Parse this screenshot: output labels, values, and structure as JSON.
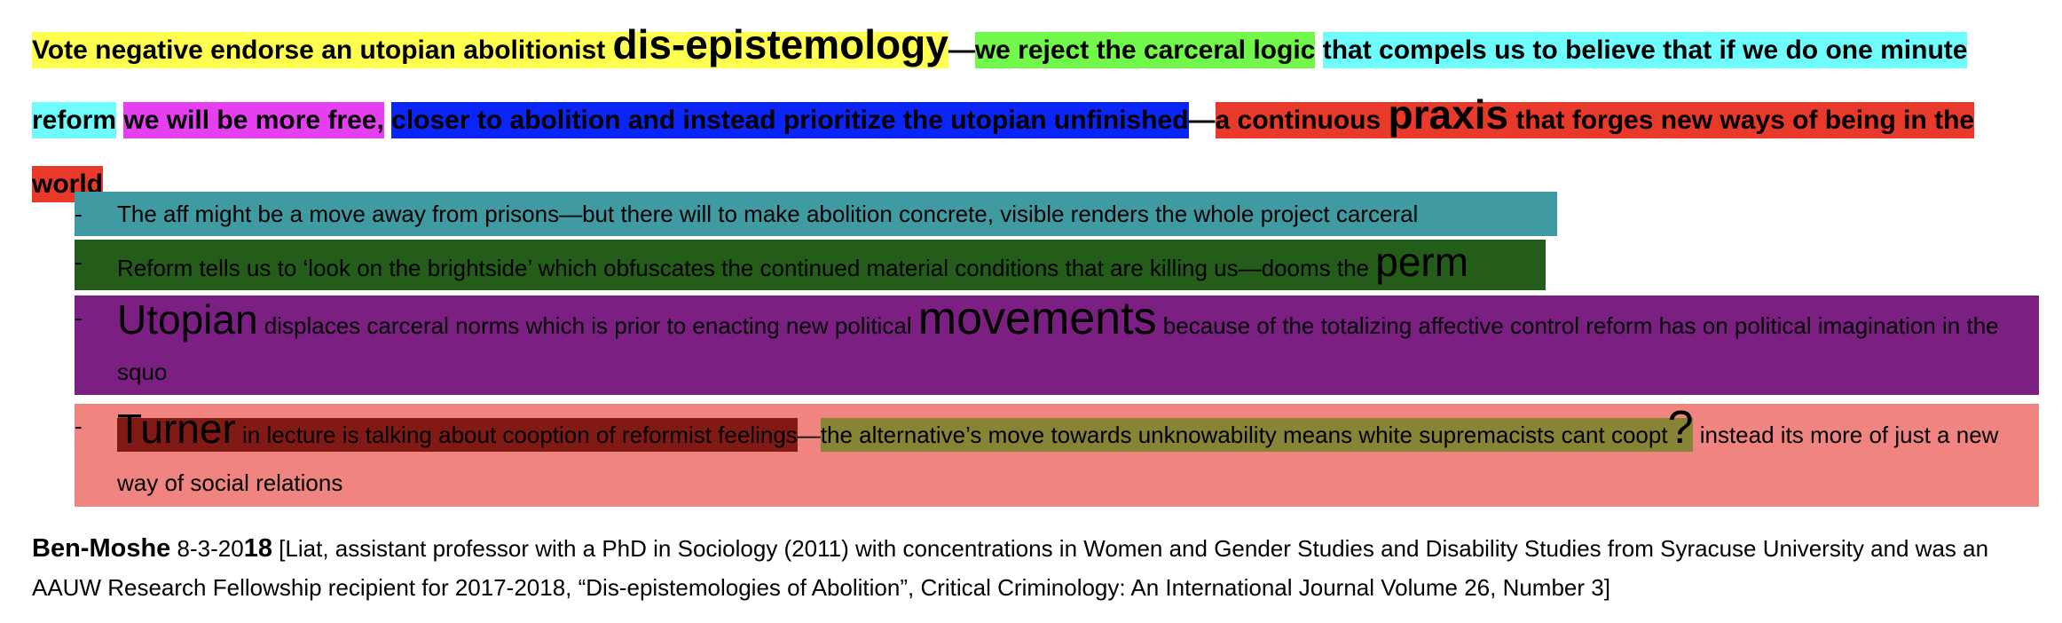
{
  "tag": {
    "seg1": "Vote negative endorse an utopian abolitionist ",
    "seg1_big": "dis-epistemology",
    "dash1": "—",
    "seg2": "we reject the carceral logic",
    "seg3": "that compels us to believe that if we do one minute reform",
    "seg4": "we will be more free,",
    "seg5": "closer to abolition and instead prioritize the utopian unfinished",
    "dash2": "—",
    "seg6a": "a continuous ",
    "seg6_big": "praxis",
    "seg6b": " that forges new ways of being in the world"
  },
  "bullets": {
    "b1": {
      "dash": "-",
      "text": "The aff might be a move away from prisons—but there will to make abolition concrete, visible renders the whole project carceral"
    },
    "b2": {
      "dash": "-",
      "text": "Reform tells us to ‘look on the brightside’ which obfuscates the continued material conditions that are killing us—dooms the ",
      "big": "perm"
    },
    "b3": {
      "dash": "-",
      "big1": "Utopian",
      "text1": " displaces carceral norms which is prior to enacting new political ",
      "big2": "movements",
      "text2": " because of the totalizing affective control reform has on political imagination in the squo"
    },
    "b4": {
      "dash": "-",
      "big1": "Turner",
      "text1": " in lecture is talking about cooption of reformist feelings",
      "dash_sep": "—",
      "text2": "the alternative’s move towards unknowability means white supremacists cant coopt",
      "big2": "?",
      "text3": " instead its more of just a new way of social relations"
    }
  },
  "citation": {
    "author": "Ben-Moshe",
    "date": " 8-3-20",
    "year_bold": "18",
    "body": " [Liat, assistant professor with a PhD in Sociology (2011) with concentrations in Women and Gender Studies and Disability Studies from Syracuse University and was an AAUW Research Fellowship recipient for 2017-2018, “Dis-epistemologies of Abolition”, Critical Criminology: An International Journal Volume 26, Number 3]"
  },
  "colors": {
    "yellow": "#ffff4f",
    "green": "#72f84a",
    "cyan": "#6efcfc",
    "magenta": "#e63ff2",
    "blue": "#0b25f8",
    "red": "#e8392a",
    "teal": "#3f9aa2",
    "dark_green": "#245c1a",
    "purple": "#7b1f82",
    "salmon": "#ef8480",
    "dark_red": "#811914",
    "olive": "#878435"
  }
}
